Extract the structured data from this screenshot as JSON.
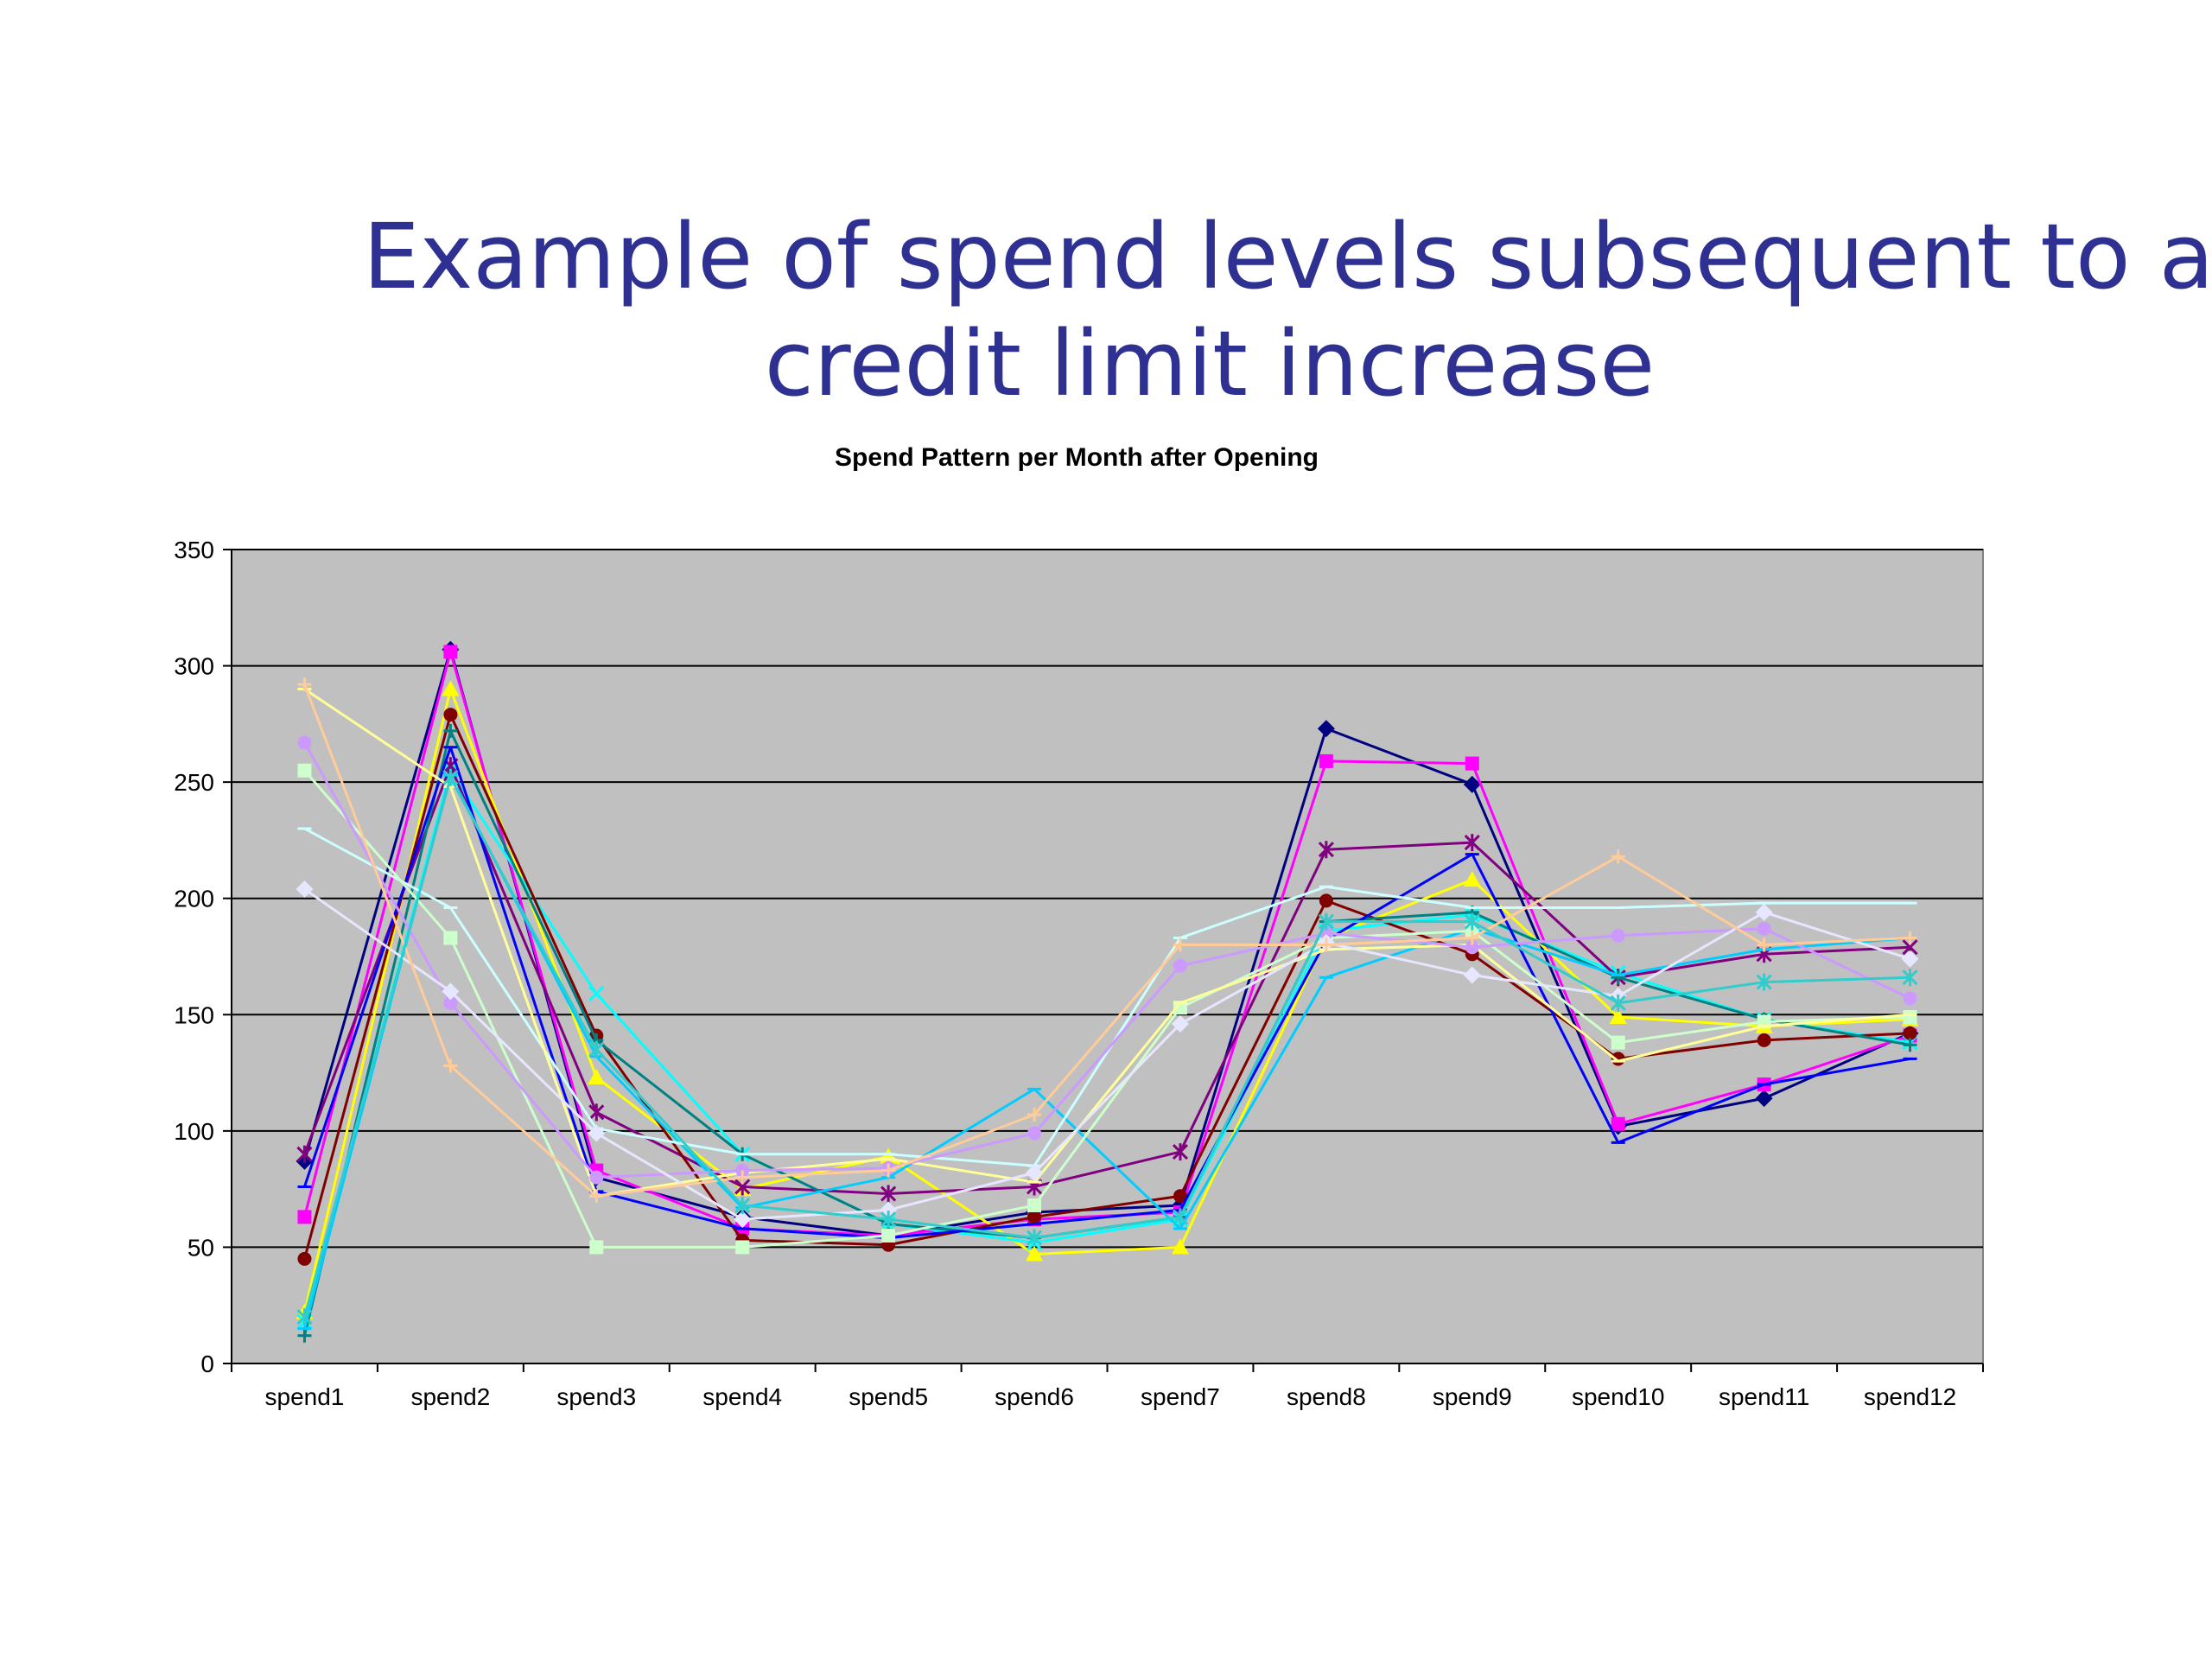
{
  "slide": {
    "title_line1": "Example of spend levels subsequent to a",
    "title_line2": "credit limit increase"
  },
  "chart_data": {
    "type": "line",
    "title": "Spend Pattern per Month after Opening",
    "xlabel": "",
    "ylabel": "",
    "categories": [
      "spend1",
      "spend2",
      "spend3",
      "spend4",
      "spend5",
      "spend6",
      "spend7",
      "spend8",
      "spend9",
      "spend10",
      "spend11",
      "spend12"
    ],
    "ylim": [
      0,
      350
    ],
    "yticks": [
      0,
      50,
      100,
      150,
      200,
      250,
      300,
      350
    ],
    "grid": true,
    "plot_background": "#C0C0C0",
    "series": [
      {
        "color": "#000080",
        "marker": "diamond",
        "values": [
          87,
          307,
          80,
          63,
          55,
          65,
          68,
          273,
          249,
          102,
          114,
          142
        ]
      },
      {
        "color": "#FF00FF",
        "marker": "square",
        "values": [
          63,
          306,
          83,
          58,
          55,
          62,
          65,
          259,
          258,
          103,
          120,
          141
        ]
      },
      {
        "color": "#FFFF00",
        "marker": "triangle",
        "values": [
          22,
          290,
          123,
          75,
          89,
          47,
          50,
          183,
          208,
          149,
          145,
          148
        ]
      },
      {
        "color": "#00FFFF",
        "marker": "x",
        "values": [
          18,
          255,
          159,
          90,
          60,
          52,
          62,
          186,
          193,
          168,
          148,
          138
        ]
      },
      {
        "color": "#800080",
        "marker": "star",
        "values": [
          90,
          257,
          108,
          76,
          73,
          76,
          91,
          221,
          224,
          166,
          176,
          179
        ]
      },
      {
        "color": "#800000",
        "marker": "circle",
        "values": [
          45,
          279,
          141,
          53,
          51,
          63,
          72,
          199,
          176,
          131,
          139,
          142
        ]
      },
      {
        "color": "#008080",
        "marker": "plus",
        "values": [
          12,
          272,
          139,
          90,
          60,
          54,
          63,
          190,
          194,
          166,
          148,
          137
        ]
      },
      {
        "color": "#0000FF",
        "marker": "dash",
        "values": [
          76,
          265,
          74,
          58,
          54,
          60,
          66,
          182,
          219,
          95,
          120,
          131
        ]
      },
      {
        "color": "#00CCFF",
        "marker": "dash",
        "values": [
          15,
          253,
          132,
          67,
          80,
          118,
          58,
          166,
          187,
          167,
          178,
          183
        ]
      },
      {
        "color": "#CCFFFF",
        "marker": "dash",
        "values": [
          230,
          196,
          101,
          90,
          90,
          85,
          183,
          205,
          196,
          196,
          198,
          198
        ]
      },
      {
        "color": "#CCFFCC",
        "marker": "square",
        "values": [
          255,
          183,
          50,
          50,
          55,
          68,
          153,
          183,
          186,
          138,
          147,
          149
        ]
      },
      {
        "color": "#FFFF99",
        "marker": "dash",
        "values": [
          290,
          248,
          72,
          82,
          88,
          78,
          155,
          178,
          180,
          130,
          145,
          150
        ]
      },
      {
        "color": "#CC99FF",
        "marker": "circle",
        "values": [
          267,
          155,
          80,
          83,
          84,
          99,
          171,
          185,
          179,
          184,
          187,
          157
        ]
      },
      {
        "color": "#E6E6FF",
        "marker": "diamond",
        "values": [
          204,
          160,
          99,
          62,
          66,
          82,
          146,
          181,
          167,
          158,
          194,
          174
        ]
      },
      {
        "color": "#FFCC99",
        "marker": "plus",
        "values": [
          292,
          128,
          72,
          80,
          83,
          107,
          180,
          180,
          183,
          218,
          180,
          183
        ]
      },
      {
        "color": "#33CCCC",
        "marker": "star",
        "values": [
          20,
          252,
          135,
          68,
          62,
          54,
          63,
          190,
          190,
          155,
          164,
          166
        ]
      }
    ]
  }
}
